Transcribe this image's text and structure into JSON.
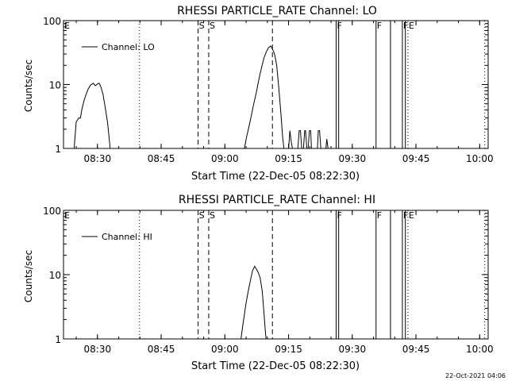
{
  "footer_timestamp": "22-Oct-2021 04:06",
  "chart_data": [
    {
      "type": "line",
      "title": "RHESSI PARTICLE_RATE Channel: LO",
      "xlabel": "Start Time (22-Dec-05 08:22:30)",
      "ylabel": "Counts/sec",
      "yscale": "log",
      "ylim": [
        1,
        100
      ],
      "xlim_min": [
        0,
        100
      ],
      "x_ticks": [
        {
          "t": 8,
          "label": "08:30"
        },
        {
          "t": 23,
          "label": "08:45"
        },
        {
          "t": 38,
          "label": "09:00"
        },
        {
          "t": 53,
          "label": "09:15"
        },
        {
          "t": 68,
          "label": "09:30"
        },
        {
          "t": 83,
          "label": "09:45"
        },
        {
          "t": 98,
          "label": "10:00"
        }
      ],
      "y_ticks": [
        {
          "v": 1,
          "label": "1"
        },
        {
          "v": 10,
          "label": "10"
        },
        {
          "v": 100,
          "label": "100"
        }
      ],
      "legend": {
        "label": "Channel: LO",
        "position": "top-left"
      },
      "markers": [
        {
          "t": 0,
          "style": "none",
          "label": "E"
        },
        {
          "t": 17.9,
          "style": "dotted",
          "label": ""
        },
        {
          "t": 31.7,
          "style": "dashed",
          "label": "S"
        },
        {
          "t": 34.2,
          "style": "dashed",
          "label": "S"
        },
        {
          "t": 49.2,
          "style": "dashed",
          "label": ""
        },
        {
          "t": 64.2,
          "style": "solid",
          "label": "F"
        },
        {
          "t": 64.8,
          "style": "solid",
          "label": ""
        },
        {
          "t": 73.6,
          "style": "solid",
          "label": "F"
        },
        {
          "t": 77.0,
          "style": "solid",
          "label": ""
        },
        {
          "t": 79.8,
          "style": "solid",
          "label": "F"
        },
        {
          "t": 80.5,
          "style": "solid",
          "label": ""
        },
        {
          "t": 81.1,
          "style": "dotted",
          "label": "E"
        },
        {
          "t": 99.2,
          "style": "dotted",
          "label": ""
        }
      ],
      "series": [
        {
          "segments": [
            [
              [
                2.5,
                1
              ],
              [
                3.0,
                2.6
              ],
              [
                3.6,
                3.0
              ],
              [
                4.0,
                3.0
              ],
              [
                4.3,
                4.0
              ],
              [
                4.8,
                5.5
              ],
              [
                5.3,
                7.0
              ],
              [
                5.8,
                8.5
              ],
              [
                6.4,
                9.8
              ],
              [
                7.0,
                10.5
              ],
              [
                7.5,
                9.6
              ],
              [
                8.0,
                10.2
              ],
              [
                8.4,
                10.5
              ],
              [
                8.8,
                9.2
              ],
              [
                9.3,
                7.0
              ],
              [
                9.8,
                4.5
              ],
              [
                10.4,
                2.5
              ],
              [
                11.0,
                1.0
              ]
            ],
            [
              [
                42.6,
                1
              ],
              [
                43.1,
                1.5
              ],
              [
                43.6,
                2.1
              ],
              [
                44.2,
                3.2
              ],
              [
                44.8,
                5.0
              ],
              [
                45.4,
                7.5
              ],
              [
                46.0,
                12
              ],
              [
                46.6,
                18
              ],
              [
                47.2,
                26
              ],
              [
                47.8,
                33
              ],
              [
                48.3,
                38
              ],
              [
                48.8,
                40
              ],
              [
                49.2,
                36
              ],
              [
                49.7,
                30
              ],
              [
                50.2,
                20
              ],
              [
                50.7,
                9
              ],
              [
                51.2,
                3.5
              ],
              [
                51.6,
                1.5
              ],
              [
                51.9,
                1.0
              ]
            ],
            [
              [
                53.0,
                1
              ],
              [
                53.3,
                1.9
              ],
              [
                53.6,
                1.3
              ],
              [
                53.9,
                1
              ]
            ],
            [
              [
                55.2,
                1
              ],
              [
                55.5,
                1.9
              ],
              [
                55.8,
                1.9
              ],
              [
                56.1,
                1
              ]
            ],
            [
              [
                56.5,
                1
              ],
              [
                56.8,
                1.9
              ],
              [
                57.0,
                1.9
              ],
              [
                57.3,
                1
              ]
            ],
            [
              [
                57.6,
                1
              ],
              [
                57.9,
                1.9
              ],
              [
                58.2,
                1.9
              ],
              [
                58.4,
                1
              ]
            ],
            [
              [
                59.8,
                1
              ],
              [
                60.0,
                1.9
              ],
              [
                60.3,
                1.9
              ],
              [
                60.6,
                1
              ]
            ],
            [
              [
                61.8,
                1
              ],
              [
                62.0,
                1.4
              ],
              [
                62.3,
                1
              ]
            ]
          ]
        }
      ]
    },
    {
      "type": "line",
      "title": "RHESSI PARTICLE_RATE Channel: HI",
      "xlabel": "Start Time (22-Dec-05 08:22:30)",
      "ylabel": "Counts/sec",
      "yscale": "log",
      "ylim": [
        1,
        100
      ],
      "xlim_min": [
        0,
        100
      ],
      "x_ticks": [
        {
          "t": 8,
          "label": "08:30"
        },
        {
          "t": 23,
          "label": "08:45"
        },
        {
          "t": 38,
          "label": "09:00"
        },
        {
          "t": 53,
          "label": "09:15"
        },
        {
          "t": 68,
          "label": "09:30"
        },
        {
          "t": 83,
          "label": "09:45"
        },
        {
          "t": 98,
          "label": "10:00"
        }
      ],
      "y_ticks": [
        {
          "v": 1,
          "label": "1"
        },
        {
          "v": 10,
          "label": "10"
        },
        {
          "v": 100,
          "label": "100"
        }
      ],
      "legend": {
        "label": "Channel: HI",
        "position": "top-left"
      },
      "markers": [
        {
          "t": 0,
          "style": "none",
          "label": "E"
        },
        {
          "t": 17.9,
          "style": "dotted",
          "label": ""
        },
        {
          "t": 31.7,
          "style": "dashed",
          "label": "S"
        },
        {
          "t": 34.2,
          "style": "dashed",
          "label": "S"
        },
        {
          "t": 49.2,
          "style": "dashed",
          "label": ""
        },
        {
          "t": 64.2,
          "style": "solid",
          "label": "F"
        },
        {
          "t": 64.8,
          "style": "solid",
          "label": ""
        },
        {
          "t": 73.6,
          "style": "solid",
          "label": "F"
        },
        {
          "t": 77.0,
          "style": "solid",
          "label": ""
        },
        {
          "t": 79.8,
          "style": "solid",
          "label": "F"
        },
        {
          "t": 80.5,
          "style": "solid",
          "label": ""
        },
        {
          "t": 81.1,
          "style": "dotted",
          "label": "E"
        },
        {
          "t": 99.2,
          "style": "dotted",
          "label": ""
        }
      ],
      "series": [
        {
          "segments": [
            [
              [
                41.8,
                1
              ],
              [
                42.2,
                1.6
              ],
              [
                42.6,
                2.4
              ],
              [
                43.0,
                3.6
              ],
              [
                43.5,
                5.5
              ],
              [
                44.0,
                8.0
              ],
              [
                44.5,
                11.5
              ],
              [
                45.0,
                13.5
              ],
              [
                45.5,
                12
              ],
              [
                45.8,
                11
              ],
              [
                46.3,
                9
              ],
              [
                46.8,
                5.5
              ],
              [
                47.2,
                2.6
              ],
              [
                47.5,
                1.4
              ],
              [
                47.7,
                1.0
              ]
            ]
          ]
        }
      ]
    }
  ]
}
